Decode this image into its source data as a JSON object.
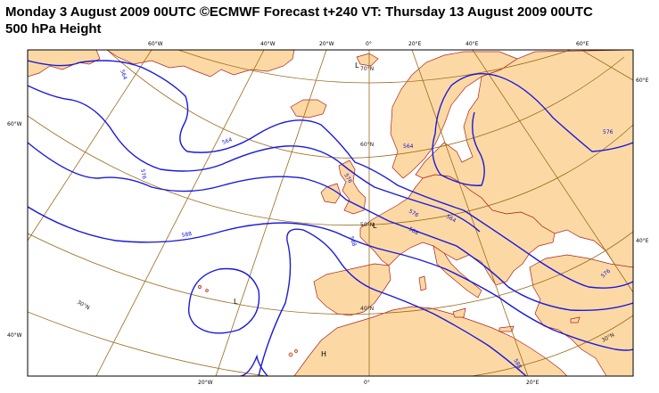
{
  "title": {
    "line1": "Monday 3 August 2009 00UTC ©ECMWF Forecast t+240 VT: Thursday 13 August 2009 00UTC",
    "line2": "500 hPa Height"
  },
  "colors": {
    "land": "#fcd9a4",
    "coast": "#b0201a",
    "contour": "#1a1adc",
    "graticule": "#9a6a1c",
    "frame": "#000000"
  },
  "top_ticks": [
    "60°W",
    "40°W",
    "20°W",
    "0°",
    "20°E",
    "40°E",
    "60°E"
  ],
  "bottom_ticks": [
    "20°W",
    "0°",
    "20°E"
  ],
  "left_ticks": [
    "60°W",
    "40°W"
  ],
  "right_ticks": [
    "60°E",
    "40°E"
  ],
  "lat_labels": [
    "70°N",
    "60°N",
    "50°N",
    "40°N",
    "30°N",
    "30°N"
  ],
  "contour_labels": [
    "564",
    "564",
    "576",
    "576",
    "588",
    "588",
    "576",
    "564",
    "564",
    "576",
    "588",
    "576",
    "588"
  ],
  "pressure_centers": [
    "L",
    "L",
    "H",
    "L"
  ]
}
